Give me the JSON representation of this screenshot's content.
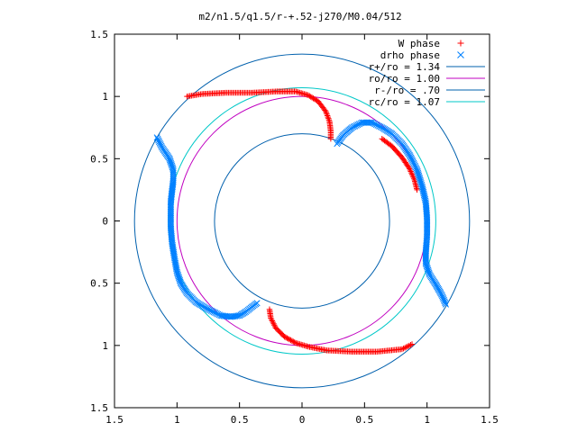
{
  "chart_data": {
    "type": "scatter",
    "title": "m2/n1.5/q1.5/r-+.52-j270/M0.04/512",
    "xlabel": "",
    "ylabel": "",
    "xlim": [
      -1.5,
      1.5
    ],
    "ylim": [
      -1.5,
      1.5
    ],
    "xticks": [
      -1.5,
      -1,
      -0.5,
      0,
      0.5,
      1,
      1.5
    ],
    "yticks": [
      -1.5,
      -1,
      -0.5,
      0,
      0.5,
      1,
      1.5
    ],
    "xtick_labels": [
      "1.5",
      "1",
      "0.5",
      "0",
      "0.5",
      "1",
      "1.5"
    ],
    "ytick_labels": [
      "1.5",
      "1",
      "0.5",
      "0",
      "0.5",
      "1",
      "1.5"
    ],
    "grid": false,
    "legend_position": "top-right",
    "scatter_series": [
      {
        "name": "W phase",
        "marker": "+",
        "color": "#ff0000",
        "strands": [
          [
            [
              -0.92,
              1.0
            ],
            [
              -0.8,
              1.02
            ],
            [
              -0.6,
              1.03
            ],
            [
              -0.4,
              1.03
            ],
            [
              -0.2,
              1.04
            ],
            [
              -0.05,
              1.04
            ],
            [
              0.05,
              1.01
            ],
            [
              0.13,
              0.96
            ],
            [
              0.19,
              0.88
            ],
            [
              0.22,
              0.8
            ],
            [
              0.23,
              0.72
            ],
            [
              0.23,
              0.66
            ]
          ],
          [
            [
              -0.26,
              -0.71
            ],
            [
              -0.25,
              -0.78
            ],
            [
              -0.21,
              -0.86
            ],
            [
              -0.14,
              -0.93
            ],
            [
              -0.05,
              -0.98
            ],
            [
              0.05,
              -1.01
            ],
            [
              0.2,
              -1.04
            ],
            [
              0.4,
              -1.05
            ],
            [
              0.6,
              -1.05
            ],
            [
              0.8,
              -1.03
            ],
            [
              0.88,
              -0.99
            ]
          ],
          [
            [
              0.64,
              0.66
            ],
            [
              0.72,
              0.6
            ],
            [
              0.8,
              0.51
            ],
            [
              0.86,
              0.42
            ],
            [
              0.9,
              0.33
            ],
            [
              0.92,
              0.25
            ]
          ]
        ]
      },
      {
        "name": "drho phase",
        "marker": "x",
        "color": "#0080ff",
        "strands": [
          [
            [
              -1.16,
              0.67
            ],
            [
              -1.12,
              0.59
            ],
            [
              -1.06,
              0.5
            ],
            [
              -1.03,
              0.41
            ],
            [
              -1.03,
              0.32
            ],
            [
              -1.04,
              0.24
            ],
            [
              -1.05,
              0.15
            ],
            [
              -1.05,
              0.05
            ],
            [
              -1.05,
              -0.05
            ],
            [
              -1.04,
              -0.17
            ],
            [
              -1.02,
              -0.3
            ],
            [
              -1.0,
              -0.41
            ],
            [
              -0.97,
              -0.5
            ],
            [
              -0.92,
              -0.58
            ],
            [
              -0.85,
              -0.65
            ],
            [
              -0.77,
              -0.7
            ],
            [
              -0.65,
              -0.76
            ],
            [
              -0.57,
              -0.77
            ],
            [
              -0.5,
              -0.76
            ],
            [
              -0.45,
              -0.73
            ],
            [
              -0.4,
              -0.69
            ],
            [
              -0.36,
              -0.66
            ]
          ],
          [
            [
              0.28,
              0.62
            ],
            [
              0.33,
              0.69
            ],
            [
              0.4,
              0.75
            ],
            [
              0.48,
              0.79
            ],
            [
              0.56,
              0.79
            ],
            [
              0.64,
              0.75
            ],
            [
              0.72,
              0.7
            ],
            [
              0.8,
              0.62
            ],
            [
              0.86,
              0.53
            ],
            [
              0.92,
              0.41
            ],
            [
              0.96,
              0.28
            ],
            [
              0.99,
              0.15
            ],
            [
              1.0,
              0.02
            ],
            [
              1.0,
              -0.12
            ],
            [
              0.99,
              -0.25
            ],
            [
              0.99,
              -0.34
            ],
            [
              1.02,
              -0.43
            ],
            [
              1.07,
              -0.51
            ],
            [
              1.12,
              -0.6
            ],
            [
              1.15,
              -0.67
            ]
          ]
        ]
      }
    ],
    "circle_series": [
      {
        "name": "r+/ro = 1.34",
        "radius": 1.34,
        "color": "#0060ad"
      },
      {
        "name": "ro/ro = 1.00",
        "radius": 1.0,
        "color": "#c000c0"
      },
      {
        "name": "r-/ro = .70",
        "radius": 0.7,
        "color": "#0060ad"
      },
      {
        "name": "rc/ro = 1.07",
        "radius": 1.07,
        "color": "#00c8c8"
      }
    ]
  }
}
